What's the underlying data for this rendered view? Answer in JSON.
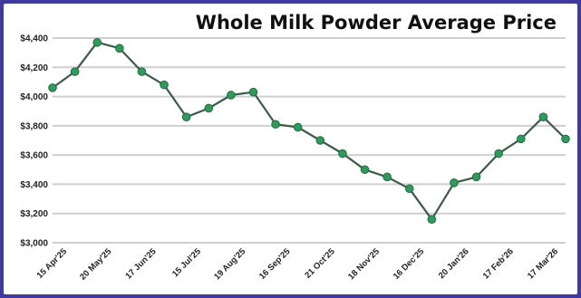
{
  "chart_data": {
    "type": "line",
    "title": "Whole Milk Powder Average Price",
    "xlabel": "",
    "ylabel": "",
    "ylim": [
      3000,
      4400
    ],
    "yticks": [
      3000,
      3200,
      3400,
      3600,
      3800,
      4000,
      4200,
      4400
    ],
    "ytick_labels": [
      "$3,000",
      "$3,200",
      "$3,400",
      "$3,600",
      "$3,800",
      "$4,000",
      "$4,200",
      "$4,400"
    ],
    "xtick_labels": [
      "15 Apr'25",
      "20 May'25",
      "17 Jun'25",
      "15 Jul'25",
      "19 Aug'25",
      "16 Sep'25",
      "21 Oct'25",
      "18 Nov'25",
      "16 Dec'25",
      "20 Jan'26",
      "17 Feb'26",
      "17 Mar'26"
    ],
    "grid": true,
    "legend": "none",
    "colors": {
      "line": "#3d5a4a",
      "marker": "#2f9a5c",
      "marker_edge": "#1d6e3f",
      "grid": "#cfcfcf"
    },
    "series": [
      {
        "values": [
          4060,
          4170,
          4370,
          4330,
          4170,
          4080,
          3860,
          3920,
          4010,
          4030,
          3810,
          3790,
          3700,
          3610,
          3500,
          3450,
          3370,
          3160,
          3410,
          3450,
          3610,
          3710,
          3860,
          3710
        ]
      }
    ]
  }
}
